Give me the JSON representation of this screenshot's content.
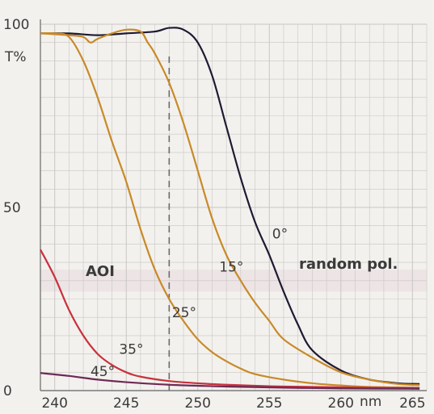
{
  "chart_data": {
    "type": "line",
    "title": "",
    "xlabel": "nm",
    "ylabel": "T%",
    "xlim": [
      239,
      266
    ],
    "ylim": [
      0,
      100
    ],
    "x_ticks": [
      240,
      245,
      250,
      255,
      260,
      265
    ],
    "x_tick_labels": [
      "240",
      "245",
      "250",
      "255",
      "260",
      "265"
    ],
    "y_ticks": [
      0,
      50,
      100
    ],
    "y_tick_labels": [
      "0",
      "50",
      "100"
    ],
    "grid": true,
    "annotations": {
      "aoi": "AOI",
      "polarization": "random pol."
    },
    "reference_line_x": 248,
    "series": [
      {
        "name": "0°",
        "color": "#1e1a33",
        "x": [
          239,
          241,
          243,
          245,
          247,
          248,
          249,
          250,
          251,
          252,
          253,
          254,
          255,
          256,
          257,
          258,
          260,
          262,
          264,
          265.5
        ],
        "y": [
          97.5,
          97.5,
          97.0,
          97.5,
          98.0,
          99.0,
          98.5,
          95.0,
          86.0,
          72.0,
          58.0,
          46.0,
          37.0,
          27.0,
          18.0,
          11.0,
          5.5,
          3.0,
          2.0,
          1.8
        ],
        "label_x": 255.2,
        "label_y": 41.5
      },
      {
        "name": "15°",
        "color": "#c88a28",
        "x": [
          239,
          241,
          242,
          242.5,
          243,
          244,
          245,
          246,
          246.5,
          247,
          248,
          249,
          250,
          251,
          252,
          253,
          254,
          255,
          256,
          258,
          260,
          262,
          264,
          265.5
        ],
        "y": [
          97.5,
          97.0,
          96.5,
          95.0,
          96.0,
          97.5,
          98.5,
          98.0,
          95.0,
          92.0,
          84.0,
          73.0,
          60.0,
          47.0,
          37.0,
          30.0,
          24.0,
          19.0,
          14.0,
          9.0,
          5.0,
          3.0,
          1.8,
          1.5
        ],
        "label_x": 251.5,
        "label_y": 32.5
      },
      {
        "name": "25°",
        "color": "#c88a28",
        "x": [
          239,
          240,
          241,
          242,
          243,
          244,
          245,
          246,
          247,
          248,
          249,
          250,
          251,
          252,
          253,
          254,
          256,
          258,
          260,
          262,
          265.5
        ],
        "y": [
          97.5,
          97.5,
          96.5,
          90.0,
          80.0,
          68.0,
          57.0,
          44.0,
          33.0,
          25.0,
          19.0,
          14.0,
          10.5,
          8.0,
          6.0,
          4.5,
          3.0,
          2.0,
          1.4,
          1.0,
          0.8
        ],
        "label_x": 248.2,
        "label_y": 20.0
      },
      {
        "name": "35°",
        "color": "#c8323c",
        "x": [
          239,
          240,
          241,
          242,
          243,
          244,
          245,
          246,
          248,
          250,
          252,
          255,
          258,
          260,
          262,
          265.5
        ],
        "y": [
          38.5,
          31.0,
          22.0,
          15.0,
          10.0,
          7.0,
          5.0,
          3.8,
          2.6,
          2.0,
          1.6,
          1.2,
          1.0,
          0.9,
          0.8,
          0.7
        ],
        "label_x": 244.5,
        "label_y": 10.0
      },
      {
        "name": "45°",
        "color": "#6e2a55",
        "x": [
          239,
          241,
          243,
          245,
          248,
          252,
          256,
          260,
          265.5
        ],
        "y": [
          4.8,
          4.0,
          3.0,
          2.3,
          1.6,
          1.1,
          0.8,
          0.6,
          0.5
        ],
        "label_x": 242.5,
        "label_y": 4.0
      }
    ]
  }
}
